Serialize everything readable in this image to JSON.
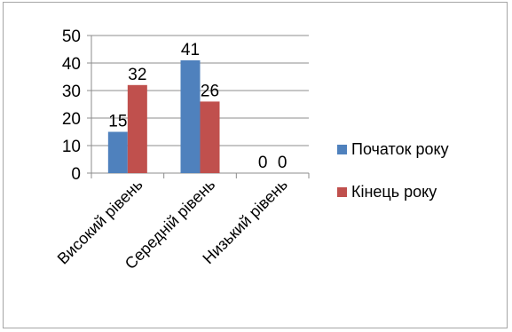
{
  "chart_data": {
    "type": "bar",
    "categories": [
      "Високий рівень",
      "Середній рівень",
      "Низький рівень"
    ],
    "series": [
      {
        "name": "Початок року",
        "values": [
          15,
          41,
          0
        ],
        "color": "#4F81BD"
      },
      {
        "name": "Кінець року",
        "values": [
          32,
          26,
          0
        ],
        "color": "#C0504D"
      }
    ],
    "ylim": [
      0,
      50
    ],
    "yticks": [
      0,
      10,
      20,
      30,
      40,
      50
    ],
    "grid": true,
    "legend": "right",
    "data_labels": true,
    "title": "",
    "xlabel": "",
    "ylabel": ""
  }
}
